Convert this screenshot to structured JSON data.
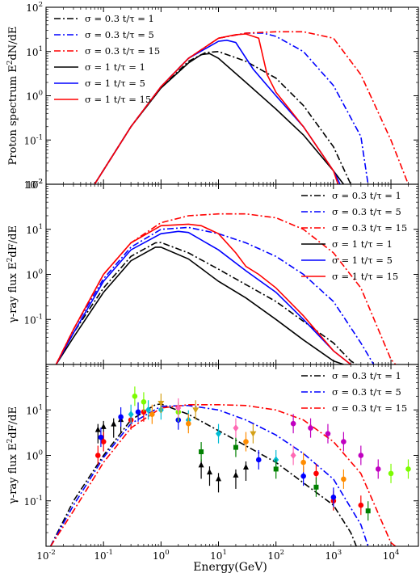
{
  "xlabel": "Energy(GeV)",
  "chart_data": [
    {
      "type": "line",
      "ylabel": "Proton spectrum E^2dN/dE",
      "xscale": "log",
      "yscale": "log",
      "xlim": [
        0.01,
        30000
      ],
      "ylim": [
        0.01,
        100
      ],
      "xtick_labels": [],
      "ytick_labels": [
        "10^-2",
        "10^-1",
        "10^0",
        "10^1",
        "10^2"
      ],
      "legend": {
        "loc": "top-left"
      },
      "series": [
        {
          "name": "σ = 0.3 t/τ = 1",
          "color": "#000000",
          "dash": "dashdot",
          "x": [
            0.07,
            0.3,
            1,
            3,
            6,
            10,
            30,
            100,
            300,
            1000,
            2000
          ],
          "y": [
            0.01,
            0.2,
            1.5,
            6,
            9.5,
            10,
            6,
            2.5,
            0.6,
            0.07,
            0.01
          ]
        },
        {
          "name": "σ = 0.3 t/τ = 5",
          "color": "#0000ff",
          "dash": "dashdot",
          "x": [
            0.07,
            0.3,
            1,
            3,
            10,
            30,
            60,
            100,
            300,
            1000,
            3000,
            4000
          ],
          "y": [
            0.01,
            0.2,
            1.6,
            7,
            20,
            26,
            26,
            22,
            10,
            1.7,
            0.12,
            0.01
          ]
        },
        {
          "name": "σ = 0.3 t/τ = 15",
          "color": "#ff0000",
          "dash": "dashdot",
          "x": [
            0.07,
            0.3,
            1,
            3,
            10,
            30,
            100,
            300,
            1000,
            3000,
            10000,
            20000
          ],
          "y": [
            0.01,
            0.2,
            1.6,
            7,
            20,
            26,
            28,
            28,
            20,
            3,
            0.1,
            0.01
          ]
        },
        {
          "name": "σ = 1 t/τ = 1",
          "color": "#000000",
          "dash": "solid",
          "x": [
            0.07,
            0.3,
            1,
            3,
            5,
            7,
            10,
            30,
            100,
            300,
            1000,
            1500
          ],
          "y": [
            0.01,
            0.2,
            1.5,
            5.5,
            8.5,
            9,
            7,
            2,
            0.5,
            0.13,
            0.02,
            0.01
          ]
        },
        {
          "name": "σ = 1 t/τ = 5",
          "color": "#0000ff",
          "dash": "solid",
          "x": [
            0.07,
            0.3,
            1,
            3,
            10,
            14,
            20,
            40,
            100,
            300,
            1000,
            1300
          ],
          "y": [
            0.01,
            0.2,
            1.6,
            7,
            17,
            18,
            16,
            4,
            1,
            0.2,
            0.02,
            0.01
          ]
        },
        {
          "name": "σ = 1 t/τ = 15",
          "color": "#ff0000",
          "dash": "solid",
          "x": [
            0.07,
            0.3,
            1,
            3,
            10,
            20,
            30,
            50,
            70,
            100,
            300,
            1000,
            1200
          ],
          "y": [
            0.01,
            0.2,
            1.6,
            7,
            20,
            24,
            25,
            20,
            3,
            1.2,
            0.2,
            0.02,
            0.01
          ]
        }
      ]
    },
    {
      "type": "line",
      "ylabel": "γ-ray flux E^2dF/dE",
      "xscale": "log",
      "yscale": "log",
      "xlim": [
        0.01,
        30000
      ],
      "ylim": [
        0.01,
        100
      ],
      "xtick_labels": [],
      "ytick_labels": [
        "10^-1",
        "10^0",
        "10^1",
        "10^2"
      ],
      "legend": {
        "loc": "top-right"
      },
      "series": [
        {
          "name": "σ = 0.3 t/τ = 1",
          "color": "#000000",
          "dash": "dashdot",
          "x": [
            0.015,
            0.03,
            0.1,
            0.3,
            0.8,
            1,
            3,
            10,
            100,
            1000,
            2000,
            2500
          ],
          "y": [
            0.01,
            0.05,
            0.5,
            2.5,
            5,
            5.1,
            3,
            1.3,
            0.25,
            0.03,
            0.012,
            0.01
          ]
        },
        {
          "name": "σ = 0.3 t/τ = 5",
          "color": "#0000ff",
          "dash": "dashdot",
          "x": [
            0.015,
            0.03,
            0.1,
            0.3,
            1,
            3,
            10,
            30,
            100,
            300,
            1000,
            3000,
            5000
          ],
          "y": [
            0.01,
            0.06,
            0.8,
            4,
            10,
            11,
            8,
            5,
            2.5,
            1,
            0.25,
            0.03,
            0.01
          ]
        },
        {
          "name": "σ = 0.3 t/τ = 15",
          "color": "#ff0000",
          "dash": "dashdot",
          "x": [
            0.015,
            0.03,
            0.1,
            0.3,
            1,
            3,
            10,
            30,
            100,
            300,
            1000,
            3000,
            10000,
            12000
          ],
          "y": [
            0.01,
            0.06,
            1,
            5,
            14,
            20,
            22,
            22,
            18,
            10,
            3,
            0.5,
            0.013,
            0.01
          ]
        },
        {
          "name": "σ = 1 t/τ = 1",
          "color": "#000000",
          "dash": "solid",
          "x": [
            0.015,
            0.03,
            0.1,
            0.3,
            0.8,
            1,
            3,
            10,
            30,
            100,
            300,
            1000,
            1500
          ],
          "y": [
            0.01,
            0.04,
            0.4,
            2,
            4,
            4,
            2.2,
            0.7,
            0.3,
            0.1,
            0.035,
            0.012,
            0.01
          ]
        },
        {
          "name": "σ = 1 t/τ = 5",
          "color": "#0000ff",
          "dash": "solid",
          "x": [
            0.015,
            0.03,
            0.1,
            0.3,
            1,
            2,
            3,
            10,
            30,
            100,
            300,
            1000,
            2000
          ],
          "y": [
            0.01,
            0.05,
            0.7,
            3.5,
            8,
            9,
            8.5,
            3.5,
            1.2,
            0.4,
            0.1,
            0.02,
            0.01
          ]
        },
        {
          "name": "σ = 1 t/τ = 15",
          "color": "#ff0000",
          "dash": "solid",
          "x": [
            0.015,
            0.03,
            0.1,
            0.3,
            1,
            3,
            5,
            10,
            20,
            30,
            50,
            100,
            300,
            1000,
            2000
          ],
          "y": [
            0.01,
            0.06,
            1,
            5,
            12,
            13,
            12,
            8,
            3,
            1.5,
            1,
            0.5,
            0.12,
            0.02,
            0.01
          ]
        }
      ]
    },
    {
      "type": "scatter",
      "ylabel": "γ-ray flux E^2dF/dE",
      "xscale": "log",
      "yscale": "log",
      "xlim": [
        0.01,
        30000
      ],
      "ylim": [
        0.01,
        100
      ],
      "xtick_labels": [
        "10^-2",
        "10^-1",
        "10^0",
        "10^1",
        "10^2",
        "10^3",
        "10^4"
      ],
      "ytick_labels": [
        "10^-1",
        "10^0",
        "10^1"
      ],
      "legend": {
        "loc": "top-right"
      },
      "series": [
        {
          "name": "σ = 0.3 t/τ = 1",
          "color": "#000000",
          "dash": "dashdot",
          "x": [
            0.012,
            0.03,
            0.1,
            0.3,
            0.8,
            1,
            3,
            10,
            100,
            1000,
            2000,
            2500
          ],
          "y": [
            0.01,
            0.1,
            1,
            6,
            13,
            13.5,
            8,
            3.5,
            0.7,
            0.08,
            0.02,
            0.01
          ]
        },
        {
          "name": "σ = 0.3 t/τ = 5",
          "color": "#0000ff",
          "dash": "dashdot",
          "x": [
            0.012,
            0.03,
            0.1,
            0.3,
            1,
            3,
            10,
            30,
            100,
            300,
            1000,
            3000,
            4000
          ],
          "y": [
            0.01,
            0.08,
            0.9,
            5,
            12,
            12.5,
            10,
            6,
            2.8,
            1.1,
            0.3,
            0.03,
            0.01
          ]
        },
        {
          "name": "σ = 0.3 t/τ = 15",
          "color": "#ff0000",
          "dash": "dashdot",
          "x": [
            0.012,
            0.03,
            0.1,
            0.3,
            1,
            3,
            10,
            30,
            100,
            300,
            1000,
            3000,
            10000,
            12000
          ],
          "y": [
            0.01,
            0.06,
            0.7,
            4,
            11,
            13,
            13,
            12.5,
            10,
            6,
            2,
            0.4,
            0.012,
            0.01
          ]
        }
      ],
      "points": [
        {
          "x": 0.08,
          "y": 3,
          "c": "#000000",
          "m": "up"
        },
        {
          "x": 0.1,
          "y": 3.5,
          "c": "#000000",
          "m": "up"
        },
        {
          "x": 0.15,
          "y": 4,
          "c": "#000000",
          "m": "up"
        },
        {
          "x": 0.2,
          "y": 5,
          "c": "#000000",
          "m": "up"
        },
        {
          "x": 5,
          "y": 0.5,
          "c": "#000000",
          "m": "up"
        },
        {
          "x": 7,
          "y": 0.35,
          "c": "#000000",
          "m": "up"
        },
        {
          "x": 10,
          "y": 0.25,
          "c": "#000000",
          "m": "up"
        },
        {
          "x": 20,
          "y": 0.3,
          "c": "#000000",
          "m": "up"
        },
        {
          "x": 30,
          "y": 0.45,
          "c": "#000000",
          "m": "up"
        },
        {
          "x": 0.08,
          "y": 1,
          "c": "#ff0000",
          "m": "o"
        },
        {
          "x": 0.1,
          "y": 2,
          "c": "#ff0000",
          "m": "o"
        },
        {
          "x": 0.3,
          "y": 6,
          "c": "#ff0000",
          "m": "o"
        },
        {
          "x": 0.5,
          "y": 9,
          "c": "#ff0000",
          "m": "o"
        },
        {
          "x": 500,
          "y": 0.4,
          "c": "#ff0000",
          "m": "o"
        },
        {
          "x": 1000,
          "y": 0.1,
          "c": "#ff0000",
          "m": "o"
        },
        {
          "x": 3000,
          "y": 0.08,
          "c": "#ff0000",
          "m": "o"
        },
        {
          "x": 0.09,
          "y": 2.5,
          "c": "#0000ff",
          "m": "o"
        },
        {
          "x": 0.2,
          "y": 7,
          "c": "#0000ff",
          "m": "o"
        },
        {
          "x": 0.4,
          "y": 9,
          "c": "#0000ff",
          "m": "o"
        },
        {
          "x": 2,
          "y": 6,
          "c": "#0000ff",
          "m": "o"
        },
        {
          "x": 50,
          "y": 0.8,
          "c": "#0000ff",
          "m": "o"
        },
        {
          "x": 300,
          "y": 0.35,
          "c": "#0000ff",
          "m": "o"
        },
        {
          "x": 1000,
          "y": 0.12,
          "c": "#0000ff",
          "m": "o"
        },
        {
          "x": 0.3,
          "y": 8,
          "c": "#00bcd4",
          "m": "d"
        },
        {
          "x": 0.6,
          "y": 10,
          "c": "#00bcd4",
          "m": "d"
        },
        {
          "x": 1,
          "y": 10,
          "c": "#00bcd4",
          "m": "d"
        },
        {
          "x": 3,
          "y": 6,
          "c": "#00bcd4",
          "m": "d"
        },
        {
          "x": 10,
          "y": 3,
          "c": "#00bcd4",
          "m": "d"
        },
        {
          "x": 100,
          "y": 0.8,
          "c": "#00bcd4",
          "m": "d"
        },
        {
          "x": 0.35,
          "y": 20,
          "c": "#7cfc00",
          "m": "o"
        },
        {
          "x": 0.5,
          "y": 15,
          "c": "#7cfc00",
          "m": "o"
        },
        {
          "x": 2,
          "y": 9,
          "c": "#7cfc00",
          "m": "o"
        },
        {
          "x": 10000,
          "y": 0.4,
          "c": "#7cfc00",
          "m": "o"
        },
        {
          "x": 20000,
          "y": 0.5,
          "c": "#7cfc00",
          "m": "o"
        },
        {
          "x": 200,
          "y": 5,
          "c": "#c000c0",
          "m": "o"
        },
        {
          "x": 400,
          "y": 4,
          "c": "#c000c0",
          "m": "o"
        },
        {
          "x": 800,
          "y": 3,
          "c": "#c000c0",
          "m": "o"
        },
        {
          "x": 1500,
          "y": 2,
          "c": "#c000c0",
          "m": "o"
        },
        {
          "x": 3000,
          "y": 1,
          "c": "#c000c0",
          "m": "o"
        },
        {
          "x": 6000,
          "y": 0.5,
          "c": "#c000c0",
          "m": "o"
        },
        {
          "x": 0.7,
          "y": 8,
          "c": "#ff8c00",
          "m": "o"
        },
        {
          "x": 3,
          "y": 5,
          "c": "#ff8c00",
          "m": "o"
        },
        {
          "x": 30,
          "y": 2,
          "c": "#ff8c00",
          "m": "o"
        },
        {
          "x": 300,
          "y": 0.7,
          "c": "#ff8c00",
          "m": "o"
        },
        {
          "x": 1500,
          "y": 0.3,
          "c": "#ff8c00",
          "m": "o"
        },
        {
          "x": 5,
          "y": 1.2,
          "c": "#008000",
          "m": "s"
        },
        {
          "x": 20,
          "y": 1.5,
          "c": "#008000",
          "m": "s"
        },
        {
          "x": 100,
          "y": 0.5,
          "c": "#008000",
          "m": "s"
        },
        {
          "x": 500,
          "y": 0.2,
          "c": "#008000",
          "m": "s"
        },
        {
          "x": 4000,
          "y": 0.06,
          "c": "#008000",
          "m": "s"
        },
        {
          "x": 1,
          "y": 14,
          "c": "#d4a017",
          "m": "v"
        },
        {
          "x": 4,
          "y": 10,
          "c": "#d4a017",
          "m": "v"
        },
        {
          "x": 40,
          "y": 3,
          "c": "#d4a017",
          "m": "v"
        },
        {
          "x": 2,
          "y": 11,
          "c": "#ff69b4",
          "m": "d"
        },
        {
          "x": 20,
          "y": 4,
          "c": "#ff69b4",
          "m": "d"
        },
        {
          "x": 200,
          "y": 1,
          "c": "#ff69b4",
          "m": "d"
        }
      ]
    }
  ]
}
